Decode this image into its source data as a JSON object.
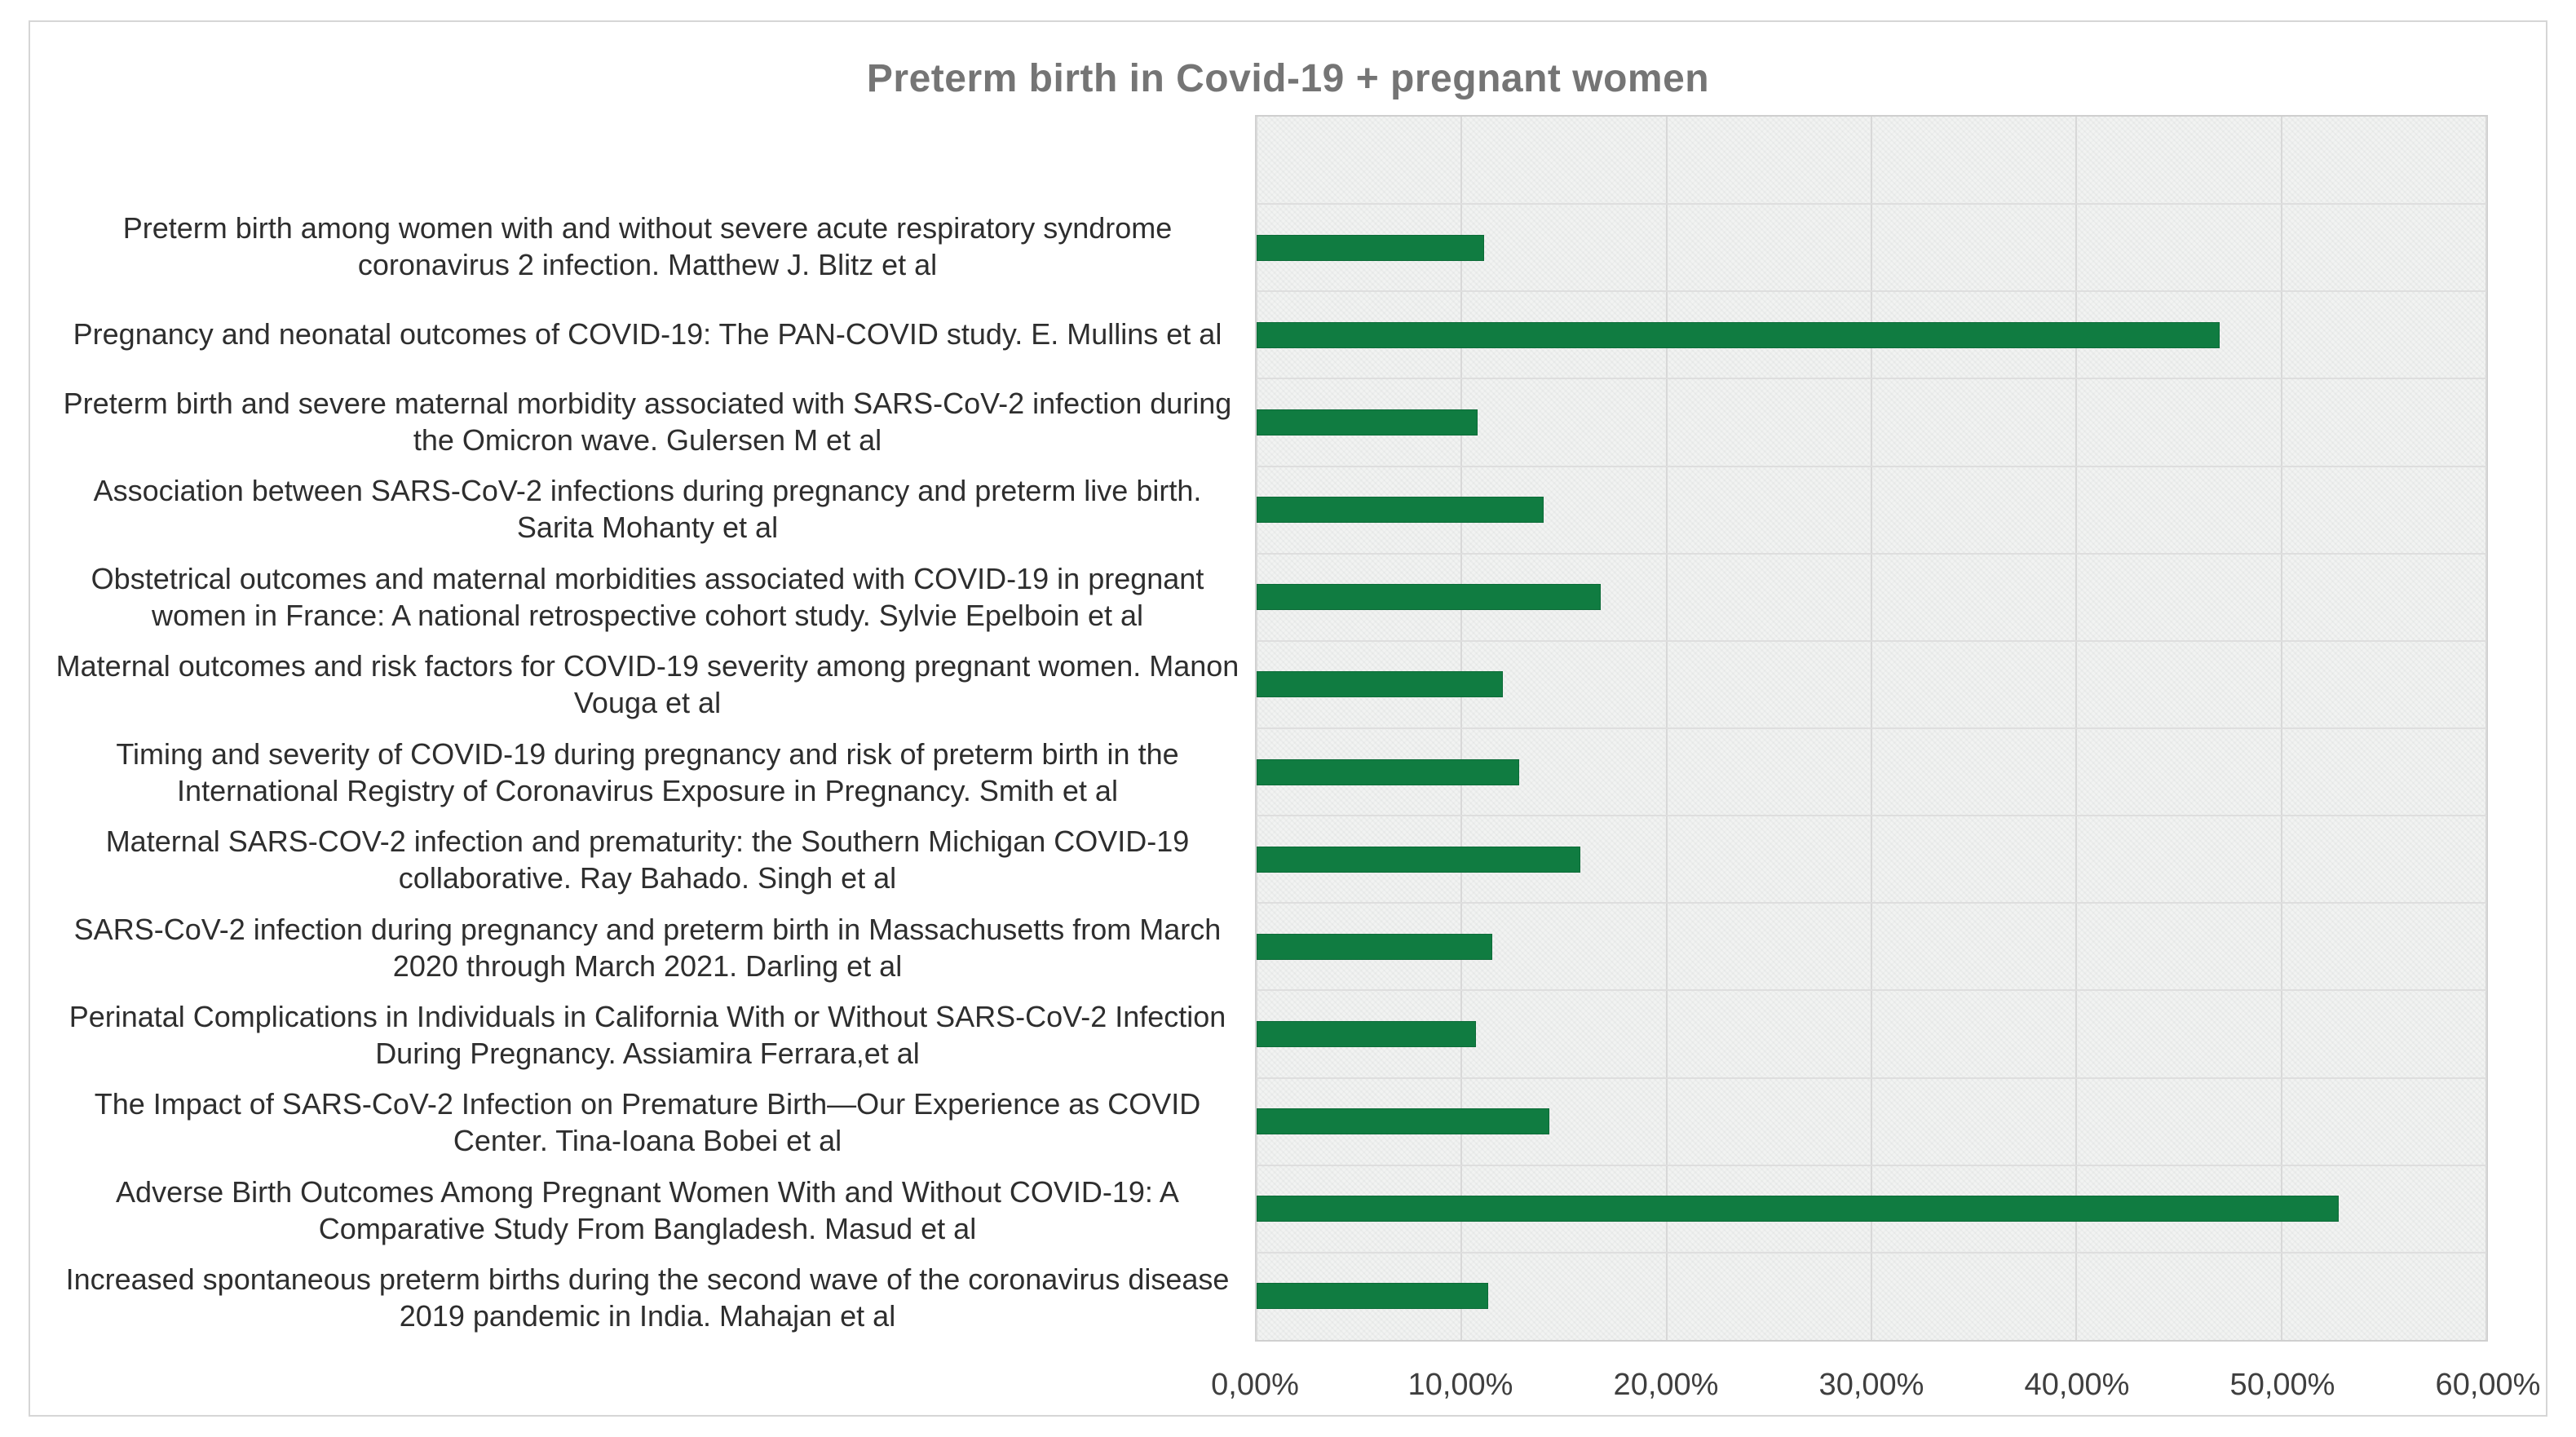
{
  "chart_data": {
    "type": "bar",
    "orientation": "horizontal",
    "title": "Preterm birth in Covid-19 + pregnant women",
    "categories": [
      "Preterm birth among women with and without severe acute respiratory syndrome coronavirus 2 infection. Matthew J. Blitz et al",
      "Pregnancy and neonatal outcomes of COVID-19: The PAN-COVID study. E. Mullins et al",
      "Preterm birth and severe maternal morbidity associated with SARS-CoV-2 infection during the Omicron wave. Gulersen M et al",
      "Association between SARS-CoV-2 infections during pregnancy and preterm live birth. Sarita Mohanty et al",
      "Obstetrical outcomes and maternal morbidities associated with COVID-19 in pregnant women in France: A national retrospective cohort study. Sylvie Epelboin et al",
      "Maternal outcomes and risk factors for COVID-19 severity among pregnant women. Manon Vouga et al",
      "Timing and severity of COVID-19 during pregnancy and risk of preterm birth in the International Registry of Coronavirus Exposure in Pregnancy.  Smith et al",
      "Maternal SARS-COV-2 infection and prematurity: the Southern Michigan COVID-19 collaborative. Ray Bahado. Singh et al",
      "SARS-CoV-2 infection during pregnancy and preterm birth in Massachusetts from March 2020 through March 2021. Darling et al",
      "Perinatal Complications in Individuals in California With or Without SARS-CoV-2 Infection During Pregnancy. Assiamira Ferrara,et al",
      "The Impact of SARS-CoV-2 Infection on Premature Birth—Our Experience as COVID Center. Tina-Ioana Bobei et al",
      "Adverse Birth Outcomes Among Pregnant Women With and Without COVID-19: A Comparative Study From Bangladesh. Masud et al",
      "Increased spontaneous preterm births during the second wave of the coronavirus disease 2019 pandemic in India. Mahajan et al"
    ],
    "values": [
      11.1,
      47.0,
      10.8,
      14.0,
      16.8,
      12.0,
      12.8,
      15.8,
      11.5,
      10.7,
      14.3,
      52.8,
      11.3
    ],
    "unit": "percent",
    "value_format": "comma-decimal",
    "xlim": [
      0,
      60
    ],
    "x_tick_step": 10,
    "x_tick_labels": [
      "0,00%",
      "10,00%",
      "20,00%",
      "30,00%",
      "40,00%",
      "50,00%",
      "60,00%"
    ],
    "grid": true,
    "legend": false,
    "leading_empty_category_slot": true,
    "total_category_slots": 14,
    "colors": {
      "bar": "#107C41",
      "title_text": "#757575",
      "label_text": "#2e2e2e",
      "tick_text": "#3f3f3f",
      "plot_bg": "#f2f3f2",
      "gridline": "#d8d8d8",
      "frame_border": "#d6d6d6"
    }
  }
}
